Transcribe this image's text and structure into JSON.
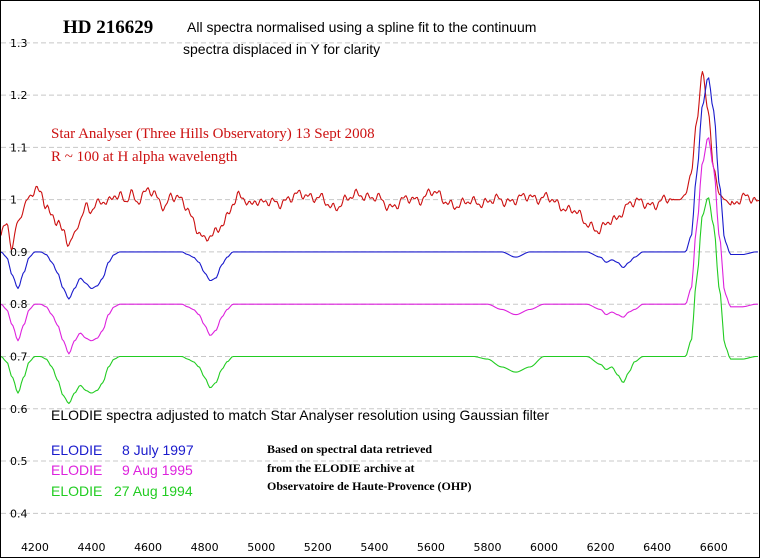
{
  "chart_data": {
    "type": "line",
    "title": "HD 216629",
    "subtitle_lines": [
      "All spectra normalised using a spline fit to the continuum",
      "spectra displaced in Y for clarity"
    ],
    "xlabel": "",
    "ylabel": "",
    "xlim": [
      4080,
      6760
    ],
    "ylim": [
      0.37,
      1.38
    ],
    "x_ticks": [
      "4200",
      "4400",
      "4600",
      "4800",
      "5000",
      "5200",
      "5400",
      "5600",
      "5800",
      "6000",
      "6200",
      "6400",
      "6600"
    ],
    "x_tick_values": [
      4200,
      4400,
      4600,
      4800,
      5000,
      5200,
      5400,
      5600,
      5800,
      6000,
      6200,
      6400,
      6600
    ],
    "y_ticks": [
      "0.4",
      "0.5",
      "0.6",
      "0.7",
      "0.8",
      "0.9",
      "1",
      "1.1",
      "1.2",
      "1.3"
    ],
    "y_tick_values": [
      0.4,
      0.5,
      0.6,
      0.7,
      0.8,
      0.9,
      1.0,
      1.1,
      1.2,
      1.3
    ],
    "grid": "horizontal dashed",
    "annotations": {
      "star_analyser_line1": "Star Analyser (Three Hills Observatory) 13 Sept 2008",
      "star_analyser_line2": "R ~ 100 at H alpha wavelength",
      "elodie_note": "ELODIE spectra adjusted to match Star Analyser resolution using Gaussian filter",
      "source_line1": "Based on spectral data retrieved",
      "source_line2": "from the ELODIE archive at",
      "source_line3": "Observatoire de Haute-Provence (OHP)"
    },
    "legend": [
      {
        "name": "ELODIE",
        "date": "8 July 1997",
        "color": "#1a1acc"
      },
      {
        "name": "ELODIE",
        "date": "9 Aug 1995",
        "color": "#dd22dd"
      },
      {
        "name": "ELODIE",
        "date": "27 Aug 1994",
        "color": "#22cc22"
      }
    ],
    "series": [
      {
        "name": "Star Analyser (Three Hills Observatory) 13 Sept 2008",
        "color": "#cc1111",
        "noisy": true,
        "x": [
          4080,
          4100,
          4120,
          4140,
          4160,
          4180,
          4200,
          4220,
          4240,
          4260,
          4280,
          4300,
          4320,
          4340,
          4360,
          4380,
          4400,
          4420,
          4440,
          4460,
          4480,
          4500,
          4520,
          4540,
          4560,
          4580,
          4600,
          4620,
          4640,
          4660,
          4680,
          4700,
          4720,
          4740,
          4760,
          4780,
          4800,
          4820,
          4840,
          4860,
          4880,
          4900,
          4920,
          4940,
          4960,
          4980,
          5000,
          5050,
          5100,
          5150,
          5200,
          5250,
          5300,
          5350,
          5400,
          5450,
          5500,
          5550,
          5600,
          5650,
          5700,
          5750,
          5800,
          5850,
          5900,
          5950,
          6000,
          6050,
          6100,
          6150,
          6200,
          6250,
          6280,
          6300,
          6350,
          6400,
          6450,
          6480,
          6500,
          6520,
          6540,
          6560,
          6580,
          6600,
          6620,
          6640,
          6660,
          6700,
          6750
        ],
        "y": [
          0.93,
          0.95,
          0.9,
          0.96,
          0.99,
          1.01,
          1.02,
          1.01,
          0.99,
          0.97,
          0.96,
          0.93,
          0.91,
          0.93,
          0.97,
          0.99,
          0.98,
          0.99,
          1.0,
          1.0,
          1.01,
          1.0,
          0.99,
          1.01,
          1.0,
          1.01,
          1.02,
          1.01,
          1.0,
          0.99,
          1.01,
          1.0,
          0.99,
          0.98,
          0.96,
          0.94,
          0.92,
          0.93,
          0.94,
          0.96,
          0.97,
          0.99,
          1.0,
          1.0,
          0.99,
          1.0,
          0.99,
          1.0,
          1.0,
          1.01,
          1.0,
          0.99,
          1.0,
          1.01,
          1.0,
          0.99,
          1.0,
          1.0,
          1.01,
          1.0,
          0.99,
          1.0,
          0.99,
          1.0,
          1.0,
          1.01,
          1.0,
          0.99,
          0.98,
          0.96,
          0.94,
          0.96,
          0.98,
          0.99,
          1.0,
          0.99,
          1.0,
          1.0,
          1.01,
          1.05,
          1.15,
          1.245,
          1.17,
          1.06,
          1.01,
          1.0,
          0.99,
          1.0,
          1.0
        ]
      },
      {
        "name": "ELODIE 8 July 1997",
        "color": "#1a1acc",
        "x": [
          4080,
          4100,
          4120,
          4140,
          4160,
          4180,
          4200,
          4220,
          4240,
          4260,
          4280,
          4300,
          4320,
          4340,
          4360,
          4380,
          4400,
          4420,
          4440,
          4460,
          4480,
          4500,
          4520,
          4540,
          4560,
          4580,
          4600,
          4620,
          4640,
          4660,
          4680,
          4700,
          4720,
          4740,
          4760,
          4780,
          4800,
          4820,
          4840,
          4860,
          4880,
          4900,
          4920,
          4940,
          4960,
          4980,
          5000,
          5050,
          5100,
          5150,
          5200,
          5250,
          5300,
          5350,
          5400,
          5450,
          5500,
          5550,
          5600,
          5650,
          5700,
          5750,
          5800,
          5850,
          5900,
          5950,
          6000,
          6050,
          6100,
          6150,
          6200,
          6220,
          6240,
          6260,
          6280,
          6300,
          6320,
          6350,
          6400,
          6450,
          6480,
          6500,
          6520,
          6540,
          6560,
          6580,
          6600,
          6620,
          6640,
          6660,
          6700,
          6750
        ],
        "y": [
          0.9,
          0.89,
          0.855,
          0.83,
          0.86,
          0.89,
          0.9,
          0.9,
          0.895,
          0.88,
          0.86,
          0.83,
          0.81,
          0.83,
          0.85,
          0.84,
          0.83,
          0.835,
          0.85,
          0.88,
          0.895,
          0.9,
          0.9,
          0.9,
          0.9,
          0.9,
          0.9,
          0.9,
          0.9,
          0.9,
          0.9,
          0.9,
          0.9,
          0.895,
          0.89,
          0.88,
          0.86,
          0.845,
          0.85,
          0.875,
          0.89,
          0.9,
          0.9,
          0.9,
          0.9,
          0.9,
          0.9,
          0.9,
          0.9,
          0.9,
          0.9,
          0.9,
          0.9,
          0.9,
          0.9,
          0.9,
          0.9,
          0.9,
          0.9,
          0.9,
          0.9,
          0.9,
          0.9,
          0.9,
          0.89,
          0.9,
          0.9,
          0.9,
          0.9,
          0.9,
          0.89,
          0.88,
          0.885,
          0.88,
          0.87,
          0.88,
          0.89,
          0.9,
          0.9,
          0.9,
          0.9,
          0.9,
          0.93,
          1.05,
          1.18,
          1.235,
          1.17,
          1.03,
          0.92,
          0.895,
          0.895,
          0.9
        ]
      },
      {
        "name": "ELODIE 9 Aug 1995",
        "color": "#dd22dd",
        "x": [
          4080,
          4100,
          4120,
          4140,
          4160,
          4180,
          4200,
          4220,
          4240,
          4260,
          4280,
          4300,
          4320,
          4340,
          4360,
          4380,
          4400,
          4420,
          4440,
          4460,
          4480,
          4500,
          4520,
          4540,
          4560,
          4580,
          4600,
          4620,
          4640,
          4660,
          4680,
          4700,
          4720,
          4740,
          4760,
          4780,
          4800,
          4820,
          4840,
          4860,
          4880,
          4900,
          4920,
          4940,
          4960,
          4980,
          5000,
          5050,
          5100,
          5150,
          5200,
          5250,
          5300,
          5350,
          5400,
          5450,
          5500,
          5550,
          5600,
          5650,
          5700,
          5750,
          5800,
          5850,
          5900,
          5950,
          6000,
          6050,
          6100,
          6150,
          6200,
          6220,
          6240,
          6260,
          6280,
          6300,
          6320,
          6350,
          6400,
          6450,
          6480,
          6500,
          6520,
          6540,
          6560,
          6580,
          6600,
          6620,
          6640,
          6660,
          6700,
          6750
        ],
        "y": [
          0.8,
          0.79,
          0.76,
          0.73,
          0.76,
          0.79,
          0.8,
          0.8,
          0.795,
          0.78,
          0.76,
          0.73,
          0.705,
          0.73,
          0.745,
          0.735,
          0.73,
          0.735,
          0.75,
          0.78,
          0.795,
          0.8,
          0.8,
          0.8,
          0.8,
          0.8,
          0.8,
          0.8,
          0.8,
          0.8,
          0.8,
          0.8,
          0.8,
          0.795,
          0.79,
          0.78,
          0.76,
          0.74,
          0.75,
          0.775,
          0.79,
          0.8,
          0.8,
          0.8,
          0.8,
          0.8,
          0.8,
          0.8,
          0.8,
          0.8,
          0.8,
          0.8,
          0.8,
          0.8,
          0.8,
          0.8,
          0.8,
          0.8,
          0.8,
          0.8,
          0.8,
          0.8,
          0.8,
          0.79,
          0.78,
          0.79,
          0.8,
          0.8,
          0.8,
          0.8,
          0.79,
          0.78,
          0.785,
          0.78,
          0.775,
          0.785,
          0.79,
          0.8,
          0.8,
          0.8,
          0.8,
          0.8,
          0.83,
          0.95,
          1.07,
          1.12,
          1.06,
          0.93,
          0.82,
          0.795,
          0.795,
          0.8
        ]
      },
      {
        "name": "ELODIE 27 Aug 1994",
        "color": "#22cc22",
        "x": [
          4080,
          4100,
          4120,
          4140,
          4160,
          4180,
          4200,
          4220,
          4240,
          4260,
          4280,
          4300,
          4320,
          4340,
          4360,
          4380,
          4400,
          4420,
          4440,
          4460,
          4480,
          4500,
          4520,
          4540,
          4560,
          4580,
          4600,
          4620,
          4640,
          4660,
          4680,
          4700,
          4720,
          4740,
          4760,
          4780,
          4800,
          4820,
          4840,
          4860,
          4880,
          4900,
          4920,
          4940,
          4960,
          4980,
          5000,
          5050,
          5100,
          5150,
          5200,
          5250,
          5300,
          5350,
          5400,
          5450,
          5500,
          5550,
          5600,
          5650,
          5700,
          5750,
          5800,
          5850,
          5900,
          5950,
          6000,
          6050,
          6100,
          6150,
          6200,
          6220,
          6240,
          6260,
          6280,
          6300,
          6320,
          6350,
          6400,
          6450,
          6480,
          6500,
          6520,
          6540,
          6560,
          6580,
          6600,
          6620,
          6640,
          6660,
          6700,
          6750
        ],
        "y": [
          0.7,
          0.69,
          0.66,
          0.63,
          0.66,
          0.69,
          0.7,
          0.7,
          0.695,
          0.68,
          0.655,
          0.625,
          0.61,
          0.63,
          0.645,
          0.635,
          0.63,
          0.635,
          0.65,
          0.68,
          0.695,
          0.7,
          0.7,
          0.7,
          0.7,
          0.7,
          0.7,
          0.7,
          0.7,
          0.7,
          0.7,
          0.7,
          0.7,
          0.695,
          0.69,
          0.68,
          0.66,
          0.64,
          0.65,
          0.675,
          0.69,
          0.7,
          0.7,
          0.7,
          0.7,
          0.7,
          0.7,
          0.7,
          0.7,
          0.7,
          0.7,
          0.7,
          0.7,
          0.7,
          0.7,
          0.7,
          0.7,
          0.7,
          0.7,
          0.7,
          0.7,
          0.7,
          0.695,
          0.68,
          0.67,
          0.68,
          0.7,
          0.7,
          0.7,
          0.7,
          0.685,
          0.675,
          0.68,
          0.665,
          0.65,
          0.67,
          0.69,
          0.7,
          0.7,
          0.7,
          0.7,
          0.7,
          0.73,
          0.85,
          0.97,
          1.005,
          0.95,
          0.83,
          0.72,
          0.695,
          0.695,
          0.7
        ]
      }
    ]
  }
}
